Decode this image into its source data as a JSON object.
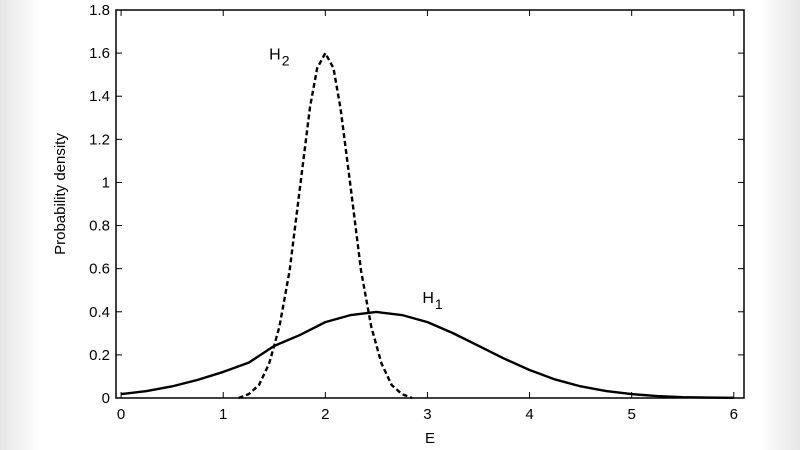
{
  "chart_data": {
    "type": "line",
    "xlabel": "E",
    "ylabel": "Probability density",
    "xlim": [
      -0.05,
      6.1
    ],
    "ylim": [
      0,
      1.8
    ],
    "xticks": [
      0,
      1,
      2,
      3,
      4,
      5,
      6
    ],
    "yticks": [
      0,
      0.2,
      0.4,
      0.6,
      0.8,
      1,
      1.2,
      1.4,
      1.6,
      1.8
    ],
    "xtick_labels": [
      "0",
      "1",
      "2",
      "3",
      "4",
      "5",
      "6"
    ],
    "ytick_labels": [
      "0",
      "0.2",
      "0.4",
      "0.6",
      "0.8",
      "1",
      "1.2",
      "1.4",
      "1.6",
      "1.8"
    ],
    "grid": false,
    "series": [
      {
        "name": "H1",
        "label_main": "H",
        "label_sub": "1",
        "style": "solid",
        "color": "#000000",
        "x": [
          0,
          0.25,
          0.5,
          0.75,
          1.0,
          1.25,
          1.5,
          1.75,
          2.0,
          2.25,
          2.5,
          2.75,
          3.0,
          3.25,
          3.5,
          3.75,
          4.0,
          4.25,
          4.5,
          4.75,
          5.0,
          5.25,
          5.5,
          5.75,
          6.0
        ],
        "y": [
          0.018,
          0.032,
          0.054,
          0.084,
          0.121,
          0.164,
          0.242,
          0.292,
          0.352,
          0.385,
          0.399,
          0.385,
          0.352,
          0.301,
          0.242,
          0.183,
          0.13,
          0.086,
          0.054,
          0.032,
          0.018,
          0.009,
          0.004,
          0.002,
          0.001
        ]
      },
      {
        "name": "H2",
        "label_main": "H",
        "label_sub": "2",
        "style": "dashed",
        "color": "#000000",
        "x": [
          1.15,
          1.25,
          1.35,
          1.45,
          1.55,
          1.65,
          1.75,
          1.85,
          1.92,
          2.0,
          2.08,
          2.15,
          2.25,
          2.35,
          2.45,
          2.55,
          2.65,
          2.75,
          2.85
        ],
        "y": [
          0.0,
          0.018,
          0.06,
          0.16,
          0.33,
          0.59,
          0.97,
          1.35,
          1.53,
          1.6,
          1.53,
          1.34,
          0.97,
          0.59,
          0.33,
          0.16,
          0.06,
          0.018,
          0.0
        ]
      }
    ]
  }
}
